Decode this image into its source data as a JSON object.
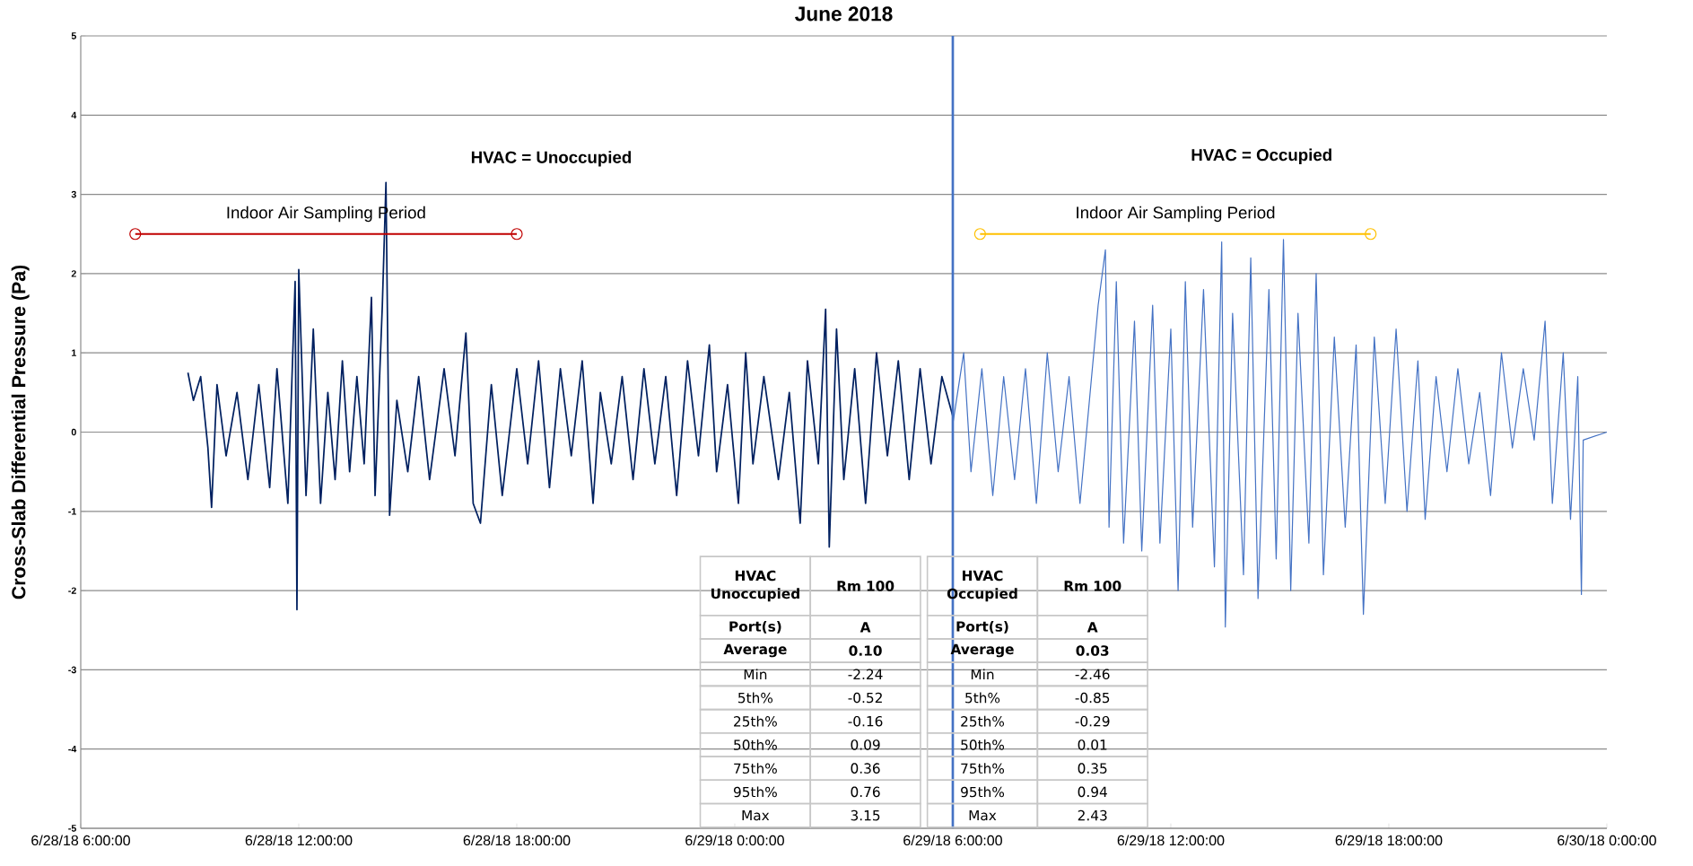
{
  "chart_data": {
    "type": "line",
    "title": "June 2018",
    "ylabel": "Cross-Slab Differential Pressure (Pa)",
    "xlim": [
      "2018-06-28T06:00",
      "2018-06-30T00:00"
    ],
    "xticks": [
      {
        "value": "2018-06-28T06:00",
        "label": "6/28/18 6:00:00"
      },
      {
        "value": "2018-06-28T12:00",
        "label": "6/28/18 12:00:00"
      },
      {
        "value": "2018-06-28T18:00",
        "label": "6/28/18 18:00:00"
      },
      {
        "value": "2018-06-29T00:00",
        "label": "6/29/18 0:00:00"
      },
      {
        "value": "2018-06-29T06:00",
        "label": "6/29/18 6:00:00"
      },
      {
        "value": "2018-06-29T12:00",
        "label": "6/29/18 12:00:00"
      },
      {
        "value": "2018-06-29T18:00",
        "label": "6/29/18 18:00:00"
      },
      {
        "value": "2018-06-30T00:00",
        "label": "6/30/18 0:00:00"
      }
    ],
    "ylim": [
      -5,
      5
    ],
    "yticks": [
      -5,
      -4,
      -3,
      -2,
      -1,
      0,
      1,
      2,
      3,
      4,
      5
    ],
    "grid": "y",
    "series": [
      {
        "color": "#002060",
        "x": [
          "2018-06-28T08:57",
          "2018-06-28T09:06",
          "2018-06-28T09:18",
          "2018-06-28T09:30",
          "2018-06-28T09:36",
          "2018-06-28T09:45",
          "2018-06-28T10:00",
          "2018-06-28T10:18",
          "2018-06-28T10:36",
          "2018-06-28T10:54",
          "2018-06-28T11:12",
          "2018-06-28T11:24",
          "2018-06-28T11:42",
          "2018-06-28T11:54",
          "2018-06-28T11:57",
          "2018-06-28T12:00",
          "2018-06-28T12:12",
          "2018-06-28T12:24",
          "2018-06-28T12:36",
          "2018-06-28T12:48",
          "2018-06-28T13:00",
          "2018-06-28T13:12",
          "2018-06-28T13:24",
          "2018-06-28T13:36",
          "2018-06-28T13:48",
          "2018-06-28T14:00",
          "2018-06-28T14:06",
          "2018-06-28T14:18",
          "2018-06-28T14:24",
          "2018-06-28T14:30",
          "2018-06-28T14:42",
          "2018-06-28T15:00",
          "2018-06-28T15:18",
          "2018-06-28T15:36",
          "2018-06-28T16:00",
          "2018-06-28T16:18",
          "2018-06-28T16:36",
          "2018-06-28T16:48",
          "2018-06-28T17:00",
          "2018-06-28T17:18",
          "2018-06-28T17:36",
          "2018-06-28T18:00",
          "2018-06-28T18:18",
          "2018-06-28T18:36",
          "2018-06-28T18:54",
          "2018-06-28T19:12",
          "2018-06-28T19:30",
          "2018-06-28T19:48",
          "2018-06-28T20:06",
          "2018-06-28T20:18",
          "2018-06-28T20:36",
          "2018-06-28T20:54",
          "2018-06-28T21:12",
          "2018-06-28T21:30",
          "2018-06-28T21:48",
          "2018-06-28T22:06",
          "2018-06-28T22:24",
          "2018-06-28T22:42",
          "2018-06-28T23:00",
          "2018-06-28T23:18",
          "2018-06-28T23:30",
          "2018-06-28T23:48",
          "2018-06-29T00:06",
          "2018-06-29T00:18",
          "2018-06-29T00:30",
          "2018-06-29T00:48",
          "2018-06-29T01:12",
          "2018-06-29T01:30",
          "2018-06-29T01:48",
          "2018-06-29T02:00",
          "2018-06-29T02:18",
          "2018-06-29T02:30",
          "2018-06-29T02:36",
          "2018-06-29T02:48",
          "2018-06-29T03:00",
          "2018-06-29T03:18",
          "2018-06-29T03:36",
          "2018-06-29T03:54",
          "2018-06-29T04:12",
          "2018-06-29T04:30",
          "2018-06-29T04:48",
          "2018-06-29T05:06",
          "2018-06-29T05:24",
          "2018-06-29T05:42",
          "2018-06-29T06:00"
        ],
        "values": [
          0.75,
          0.4,
          0.7,
          -0.2,
          -0.95,
          0.6,
          -0.3,
          0.5,
          -0.6,
          0.6,
          -0.7,
          0.8,
          -0.9,
          1.9,
          -2.24,
          2.05,
          -0.8,
          1.3,
          -0.9,
          0.5,
          -0.6,
          0.9,
          -0.5,
          0.7,
          -0.4,
          1.7,
          -0.8,
          1.6,
          3.15,
          -1.05,
          0.4,
          -0.5,
          0.7,
          -0.6,
          0.8,
          -0.3,
          1.25,
          -0.9,
          -1.15,
          0.6,
          -0.8,
          0.8,
          -0.4,
          0.9,
          -0.7,
          0.8,
          -0.3,
          0.9,
          -0.9,
          0.5,
          -0.4,
          0.7,
          -0.6,
          0.8,
          -0.4,
          0.7,
          -0.8,
          0.9,
          -0.3,
          1.1,
          -0.5,
          0.6,
          -0.9,
          1.0,
          -0.4,
          0.7,
          -0.6,
          0.5,
          -1.15,
          0.9,
          -0.4,
          1.55,
          -1.45,
          1.3,
          -0.6,
          0.8,
          -0.9,
          1.0,
          -0.3,
          0.9,
          -0.6,
          0.8,
          -0.4,
          0.7,
          0.2
        ]
      },
      {
        "color": "#4472c4",
        "x": [
          "2018-06-29T06:00",
          "2018-06-29T06:18",
          "2018-06-29T06:30",
          "2018-06-29T06:48",
          "2018-06-29T07:06",
          "2018-06-29T07:24",
          "2018-06-29T07:42",
          "2018-06-29T08:00",
          "2018-06-29T08:18",
          "2018-06-29T08:36",
          "2018-06-29T08:54",
          "2018-06-29T09:12",
          "2018-06-29T09:30",
          "2018-06-29T09:48",
          "2018-06-29T10:00",
          "2018-06-29T10:12",
          "2018-06-29T10:18",
          "2018-06-29T10:30",
          "2018-06-29T10:42",
          "2018-06-29T11:00",
          "2018-06-29T11:12",
          "2018-06-29T11:30",
          "2018-06-29T11:42",
          "2018-06-29T12:00",
          "2018-06-29T12:12",
          "2018-06-29T12:24",
          "2018-06-29T12:36",
          "2018-06-29T12:54",
          "2018-06-29T13:12",
          "2018-06-29T13:24",
          "2018-06-29T13:30",
          "2018-06-29T13:42",
          "2018-06-29T14:00",
          "2018-06-29T14:12",
          "2018-06-29T14:24",
          "2018-06-29T14:42",
          "2018-06-29T14:54",
          "2018-06-29T15:06",
          "2018-06-29T15:18",
          "2018-06-29T15:30",
          "2018-06-29T15:48",
          "2018-06-29T16:00",
          "2018-06-29T16:12",
          "2018-06-29T16:30",
          "2018-06-29T16:48",
          "2018-06-29T17:06",
          "2018-06-29T17:18",
          "2018-06-29T17:36",
          "2018-06-29T17:54",
          "2018-06-29T18:12",
          "2018-06-29T18:30",
          "2018-06-29T18:48",
          "2018-06-29T19:00",
          "2018-06-29T19:18",
          "2018-06-29T19:36",
          "2018-06-29T19:54",
          "2018-06-29T20:12",
          "2018-06-29T20:30",
          "2018-06-29T20:48",
          "2018-06-29T21:06",
          "2018-06-29T21:24",
          "2018-06-29T21:42",
          "2018-06-29T22:00",
          "2018-06-29T22:18",
          "2018-06-29T22:30",
          "2018-06-29T22:48",
          "2018-06-29T23:00",
          "2018-06-29T23:12",
          "2018-06-29T23:18",
          "2018-06-29T23:21",
          "2018-06-30T00:00"
        ],
        "values": [
          0.1,
          1.0,
          -0.5,
          0.8,
          -0.8,
          0.7,
          -0.6,
          0.8,
          -0.9,
          1.0,
          -0.5,
          0.7,
          -0.9,
          0.6,
          1.6,
          2.3,
          -1.2,
          1.9,
          -1.4,
          1.4,
          -1.5,
          1.6,
          -1.4,
          1.3,
          -2.0,
          1.9,
          -1.2,
          1.8,
          -1.7,
          2.4,
          -2.46,
          1.5,
          -1.8,
          2.2,
          -2.1,
          1.8,
          -1.6,
          2.43,
          -2.0,
          1.5,
          -1.4,
          2.0,
          -1.8,
          1.2,
          -1.2,
          1.1,
          -2.3,
          1.2,
          -0.9,
          1.3,
          -1.0,
          0.9,
          -1.1,
          0.7,
          -0.5,
          0.8,
          -0.4,
          0.5,
          -0.8,
          1.0,
          -0.2,
          0.8,
          -0.1,
          1.4,
          -0.9,
          1.0,
          -1.1,
          0.7,
          -2.05,
          -0.1,
          0
        ]
      },
      {
        "name": "Indoor Air Sampling Period",
        "color": "#c00000",
        "marker": "circle",
        "x": [
          "2018-06-28T07:30",
          "2018-06-28T18:00"
        ],
        "values": [
          2.5,
          2.5
        ]
      },
      {
        "name": "Indoor Air Sampling Period",
        "color": "#ffc000",
        "marker": "circle",
        "x": [
          "2018-06-29T06:45",
          "2018-06-29T17:30"
        ],
        "values": [
          2.5,
          2.5
        ]
      }
    ],
    "ref_lines": [
      {
        "axis": "x",
        "value": "2018-06-29T06:00",
        "color": "#4472c4"
      }
    ],
    "annotations": [
      "HVAC = Unoccupied",
      "HVAC = Occupied",
      "HVAC Unoccupied",
      "Rm 100",
      "Port(s)",
      "A",
      "Average",
      "0.10",
      "Min",
      "-2.24",
      "5th%",
      "-0.52",
      "25th%",
      "-0.16",
      "50th%",
      "0.09",
      "75th%",
      "0.36",
      "95th%",
      "0.76",
      "Max",
      "3.15",
      "HVAC Occupied",
      "Rm 100",
      "Port(s)",
      "A",
      "Average",
      "0.03",
      "Min",
      "-2.46",
      "5th%",
      "-0.85",
      "25th%",
      "-0.29",
      "50th%",
      "0.01",
      "75th%",
      "0.35",
      "95th%",
      "0.94",
      "Max",
      "2.43"
    ]
  }
}
